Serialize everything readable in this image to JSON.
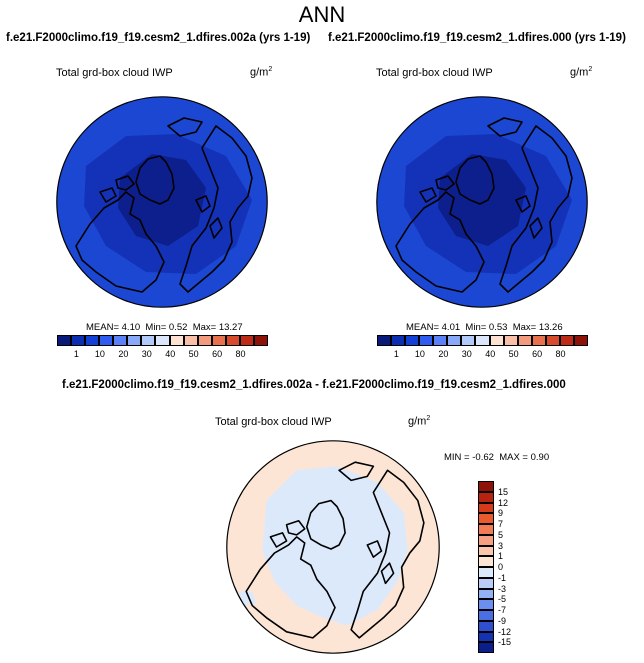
{
  "title": "ANN",
  "panels": [
    {
      "case": "f.e21.F2000climo.f19_f19.cesm2_1.dfires.002a (yrs 1-19)",
      "variable": "Total grd-box cloud IWP",
      "units_base": "g/m",
      "units_exp": "2",
      "stats": {
        "mean_label": "MEAN=",
        "mean": "4.10",
        "min_label": "Min=",
        "min": "0.52",
        "max_label": "Max=",
        "max": "13.27"
      }
    },
    {
      "case": "f.e21.F2000climo.f19_f19.cesm2_1.dfires.000 (yrs 1-19)",
      "variable": "Total grd-box cloud IWP",
      "units_base": "g/m",
      "units_exp": "2",
      "stats": {
        "mean_label": "MEAN=",
        "mean": "4.01",
        "min_label": "Min=",
        "min": "0.53",
        "max_label": "Max=",
        "max": "13.26"
      }
    }
  ],
  "difference": {
    "case": "f.e21.F2000climo.f19_f19.cesm2_1.dfires.002a - f.e21.F2000climo.f19_f19.cesm2_1.dfires.000",
    "variable": "Total grd-box cloud IWP",
    "units_base": "g/m",
    "units_exp": "2",
    "stats": {
      "min_label": "MIN =",
      "min": "-0.62",
      "max_label": "MAX =",
      "max": "0.90"
    }
  },
  "colorbar_abs": {
    "ticks": [
      "1",
      "10",
      "20",
      "30",
      "40",
      "50",
      "60",
      "80"
    ],
    "colors": [
      "#0a1a7a",
      "#0b2fb0",
      "#1540d6",
      "#2f5cf0",
      "#5a82f6",
      "#88a8f8",
      "#b3c9fa",
      "#dbe6fb",
      "#fde2d4",
      "#f9bfa8",
      "#f29a7e",
      "#e8704f",
      "#d84a2c",
      "#bd2a18",
      "#8f1208"
    ]
  },
  "colorbar_diff": {
    "ticks": [
      "15",
      "12",
      "9",
      "7",
      "5",
      "3",
      "1",
      "0",
      "-1",
      "-3",
      "-5",
      "-7",
      "-9",
      "-12",
      "-15"
    ],
    "colors": [
      "#8f1208",
      "#b8230f",
      "#d63a1a",
      "#ea5a2e",
      "#f27a55",
      "#f79f80",
      "#fbc6ad",
      "#fde5d6",
      "#dce9fb",
      "#b9cdf8",
      "#93b1f4",
      "#6b8ff0",
      "#4a6fe4",
      "#2e50d0",
      "#1533b0",
      "#0b1e8a"
    ]
  },
  "map_colors": {
    "field_dark": "#0d1f8c",
    "field_mid": "#1332b8",
    "field_outer": "#1c47d2",
    "diff_pos": "#fde5d6",
    "diff_neg": "#dce9fb",
    "coast": "#000000"
  }
}
